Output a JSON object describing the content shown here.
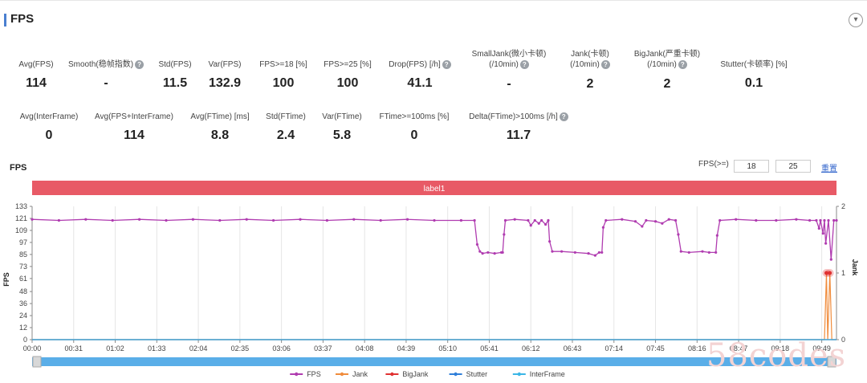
{
  "panel": {
    "title": "FPS",
    "collapse_icon": "chevron-down-icon"
  },
  "metrics_row1": [
    {
      "label": "Avg(FPS)",
      "value": "114",
      "help": false
    },
    {
      "label": "Smooth(稳帧指数)",
      "value": "-",
      "help": true
    },
    {
      "label": "Std(FPS)",
      "value": "11.5",
      "help": false
    },
    {
      "label": "Var(FPS)",
      "value": "132.9",
      "help": false
    },
    {
      "label": "FPS>=18 [%]",
      "value": "100",
      "help": false
    },
    {
      "label": "FPS>=25 [%]",
      "value": "100",
      "help": false
    },
    {
      "label": "Drop(FPS) [/h]",
      "value": "41.1",
      "help": true
    },
    {
      "label": "SmallJank(微小卡顿)",
      "label2": "(/10min)",
      "value": "-",
      "help": true
    },
    {
      "label": "Jank(卡顿)",
      "label2": "(/10min)",
      "value": "2",
      "help": true
    },
    {
      "label": "BigJank(严重卡顿)",
      "label2": "(/10min)",
      "value": "2",
      "help": true
    },
    {
      "label": "Stutter(卡顿率) [%]",
      "value": "0.1",
      "help": false
    }
  ],
  "metrics_row2": [
    {
      "label": "Avg(InterFrame)",
      "value": "0",
      "help": false
    },
    {
      "label": "Avg(FPS+InterFrame)",
      "value": "114",
      "help": false
    },
    {
      "label": "Avg(FTime) [ms]",
      "value": "8.8",
      "help": false
    },
    {
      "label": "Std(FTime)",
      "value": "2.4",
      "help": false
    },
    {
      "label": "Var(FTime)",
      "value": "5.8",
      "help": false
    },
    {
      "label": "FTime>=100ms [%]",
      "value": "0",
      "help": false
    },
    {
      "label": "Delta(FTime)>100ms [/h]",
      "value": "11.7",
      "help": true
    }
  ],
  "controls": {
    "fps_label": "FPS(>=)",
    "threshold1": "18",
    "threshold2": "25",
    "reset_label": "重置"
  },
  "watermark": "58codes",
  "chart_data": {
    "type": "line",
    "title": "FPS",
    "band_label": "label1",
    "ylabel": "FPS",
    "y2label": "Jank",
    "ylim": [
      0,
      133
    ],
    "y2lim": [
      0,
      2
    ],
    "yticks": [
      0,
      12,
      24,
      36,
      48,
      61,
      73,
      85,
      97,
      109,
      121,
      133
    ],
    "y2ticks": [
      0,
      1,
      2
    ],
    "xlim": [
      0,
      600
    ],
    "xtick_labels": [
      "00:00",
      "00:31",
      "01:02",
      "01:33",
      "02:04",
      "02:35",
      "03:06",
      "03:37",
      "04:08",
      "04:39",
      "05:10",
      "05:41",
      "06:12",
      "06:43",
      "07:14",
      "07:45",
      "08:16",
      "08:47",
      "09:18",
      "09:49"
    ],
    "xtick_seconds": [
      0,
      31,
      62,
      93,
      124,
      155,
      186,
      217,
      248,
      279,
      310,
      341,
      372,
      403,
      434,
      465,
      496,
      527,
      558,
      589
    ],
    "series": [
      {
        "name": "FPS",
        "color": "#b03cb0",
        "axis": "left",
        "points": [
          [
            0,
            120
          ],
          [
            20,
            119
          ],
          [
            40,
            120
          ],
          [
            60,
            119
          ],
          [
            80,
            120
          ],
          [
            100,
            119
          ],
          [
            120,
            120
          ],
          [
            140,
            119
          ],
          [
            160,
            120
          ],
          [
            180,
            119
          ],
          [
            200,
            120
          ],
          [
            220,
            119
          ],
          [
            240,
            120
          ],
          [
            260,
            119
          ],
          [
            280,
            120
          ],
          [
            300,
            119
          ],
          [
            320,
            119
          ],
          [
            330,
            119
          ],
          [
            332,
            95
          ],
          [
            334,
            88
          ],
          [
            336,
            86
          ],
          [
            340,
            87
          ],
          [
            345,
            86
          ],
          [
            350,
            87
          ],
          [
            351,
            87
          ],
          [
            352,
            105
          ],
          [
            353,
            119
          ],
          [
            360,
            120
          ],
          [
            370,
            119
          ],
          [
            372,
            114
          ],
          [
            375,
            119
          ],
          [
            378,
            116
          ],
          [
            380,
            119
          ],
          [
            383,
            115
          ],
          [
            385,
            119
          ],
          [
            386,
            98
          ],
          [
            388,
            88
          ],
          [
            395,
            88
          ],
          [
            405,
            87
          ],
          [
            415,
            86
          ],
          [
            420,
            84
          ],
          [
            423,
            87
          ],
          [
            425,
            87
          ],
          [
            426,
            112
          ],
          [
            428,
            119
          ],
          [
            440,
            120
          ],
          [
            450,
            118
          ],
          [
            455,
            113
          ],
          [
            458,
            119
          ],
          [
            465,
            118
          ],
          [
            470,
            116
          ],
          [
            475,
            120
          ],
          [
            480,
            119
          ],
          [
            482,
            105
          ],
          [
            484,
            88
          ],
          [
            490,
            87
          ],
          [
            500,
            88
          ],
          [
            505,
            87
          ],
          [
            510,
            87
          ],
          [
            511,
            104
          ],
          [
            513,
            119
          ],
          [
            525,
            120
          ],
          [
            540,
            119
          ],
          [
            555,
            119
          ],
          [
            570,
            120
          ],
          [
            580,
            119
          ],
          [
            585,
            119
          ],
          [
            587,
            111
          ],
          [
            588,
            119
          ],
          [
            590,
            106
          ],
          [
            591,
            119
          ],
          [
            592,
            96
          ],
          [
            594,
            119
          ],
          [
            596,
            80
          ],
          [
            598,
            119
          ],
          [
            600,
            119
          ]
        ]
      },
      {
        "name": "Jank",
        "color": "#f08c3c",
        "axis": "right",
        "points": [
          [
            0,
            0
          ],
          [
            591,
            0
          ],
          [
            592.5,
            1
          ],
          [
            593.5,
            0
          ],
          [
            595,
            1
          ],
          [
            596.5,
            0
          ],
          [
            600,
            0
          ]
        ]
      },
      {
        "name": "BigJank",
        "color": "#e03232",
        "axis": "right",
        "points": [
          [
            0,
            0
          ],
          [
            600,
            0
          ]
        ]
      },
      {
        "name": "Stutter",
        "color": "#2f7fd9",
        "axis": "right",
        "points": [
          [
            0,
            0
          ],
          [
            600,
            0
          ]
        ]
      },
      {
        "name": "InterFrame",
        "color": "#3ab6e6",
        "axis": "right",
        "points": [
          [
            0,
            0
          ],
          [
            600,
            0
          ]
        ]
      }
    ],
    "markers": [
      {
        "name": "BigJank",
        "x": 592.5,
        "y2": 1
      },
      {
        "name": "BigJank",
        "x": 595,
        "y2": 1
      }
    ],
    "legend_position": "bottom",
    "grid": "vertical"
  }
}
